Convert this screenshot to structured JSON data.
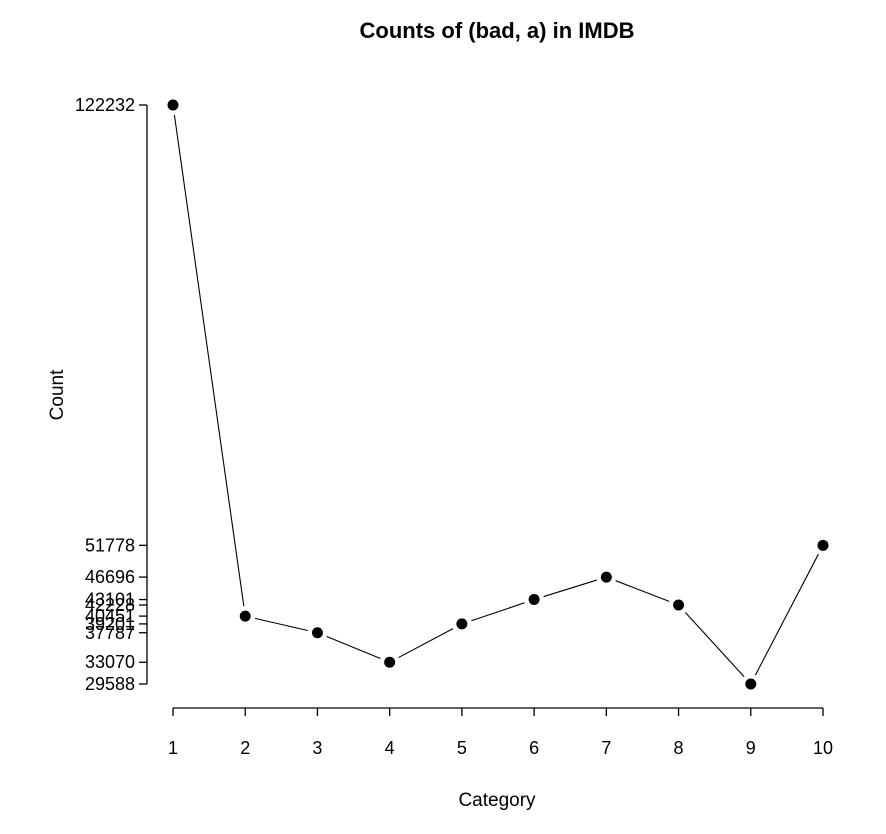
{
  "chart_data": {
    "type": "line",
    "title": "Counts of (bad, a) in IMDB",
    "xlabel": "Category",
    "ylabel": "Count",
    "x": [
      1,
      2,
      3,
      4,
      5,
      6,
      7,
      8,
      9,
      10
    ],
    "y": [
      122232,
      40451,
      37787,
      33070,
      39201,
      43101,
      46696,
      42228,
      29588,
      51778
    ],
    "xticks": [
      1,
      2,
      3,
      4,
      5,
      6,
      7,
      8,
      9,
      10
    ],
    "yticks": [
      29588,
      33070,
      37787,
      39201,
      40451,
      42228,
      43101,
      46696,
      51778,
      122232
    ],
    "xlim": [
      1,
      10
    ],
    "ylim": [
      29588,
      122232
    ],
    "grid": false,
    "marker": "filled-circle",
    "color": "#000000"
  }
}
